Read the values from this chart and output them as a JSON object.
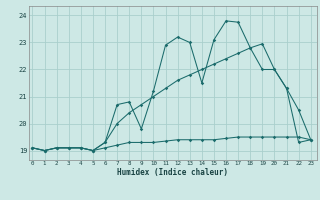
{
  "xlabel": "Humidex (Indice chaleur)",
  "background_color": "#cde8e5",
  "grid_color": "#aacfcc",
  "line_color": "#1a6b6b",
  "x_ticks": [
    0,
    1,
    2,
    3,
    4,
    5,
    6,
    7,
    8,
    9,
    10,
    11,
    12,
    13,
    14,
    15,
    16,
    17,
    18,
    19,
    20,
    21,
    22,
    23
  ],
  "y_ticks": [
    19,
    20,
    21,
    22,
    23,
    24
  ],
  "xlim": [
    -0.3,
    23.5
  ],
  "ylim": [
    18.65,
    24.35
  ],
  "line1_x": [
    0,
    1,
    2,
    3,
    4,
    5,
    6,
    7,
    8,
    9,
    10,
    11,
    12,
    13,
    14,
    15,
    16,
    17,
    18,
    19,
    20,
    21,
    22,
    23
  ],
  "line1_y": [
    19.1,
    19.0,
    19.1,
    19.1,
    19.1,
    19.0,
    19.1,
    19.2,
    19.3,
    19.3,
    19.3,
    19.35,
    19.4,
    19.4,
    19.4,
    19.4,
    19.45,
    19.5,
    19.5,
    19.5,
    19.5,
    19.5,
    19.5,
    19.4
  ],
  "line2_x": [
    0,
    1,
    2,
    3,
    4,
    5,
    6,
    7,
    8,
    9,
    10,
    11,
    12,
    13,
    14,
    15,
    16,
    17,
    18,
    19,
    20,
    21,
    22,
    23
  ],
  "line2_y": [
    19.1,
    19.0,
    19.1,
    19.1,
    19.1,
    19.0,
    19.3,
    20.0,
    20.4,
    20.7,
    21.0,
    21.3,
    21.6,
    21.8,
    22.0,
    22.2,
    22.4,
    22.6,
    22.8,
    22.95,
    22.0,
    21.3,
    20.5,
    19.4
  ],
  "line3_x": [
    0,
    1,
    2,
    3,
    4,
    5,
    6,
    7,
    8,
    9,
    10,
    11,
    12,
    13,
    14,
    15,
    16,
    17,
    18,
    19,
    20,
    21,
    22,
    23
  ],
  "line3_y": [
    19.1,
    19.0,
    19.1,
    19.1,
    19.1,
    19.0,
    19.3,
    20.7,
    20.8,
    19.8,
    21.2,
    22.9,
    23.2,
    23.0,
    21.5,
    23.1,
    23.8,
    23.75,
    22.8,
    22.0,
    22.0,
    21.3,
    19.3,
    19.4
  ]
}
